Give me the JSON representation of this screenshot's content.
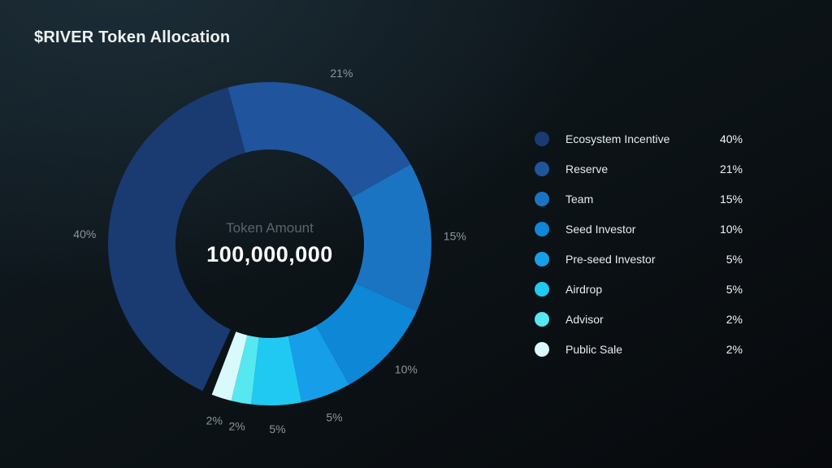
{
  "title": "$RIVER Token Allocation",
  "center": {
    "label": "Token Amount",
    "value": "100,000,000"
  },
  "legend": {
    "position": "right",
    "value_suffix": "%"
  },
  "chart_data": {
    "type": "pie",
    "title": "$RIVER Token Allocation",
    "donut": true,
    "center_label": "Token Amount",
    "center_value": "100,000,000",
    "start_angle_deg": -15,
    "direction": "clockwise",
    "legend_position": "right",
    "slice_label_format": "percent",
    "slices": [
      {
        "label": "Ecosystem Incentive",
        "value": 40,
        "color": "#1a3a72"
      },
      {
        "label": "Reserve",
        "value": 21,
        "color": "#20549d"
      },
      {
        "label": "Team",
        "value": 15,
        "color": "#1b74c2"
      },
      {
        "label": "Seed Investor",
        "value": 10,
        "color": "#0d87d6"
      },
      {
        "label": "Pre-seed Investor",
        "value": 5,
        "color": "#169fe8"
      },
      {
        "label": "Airdrop",
        "value": 5,
        "color": "#1fc9f2"
      },
      {
        "label": "Advisor",
        "value": 2,
        "color": "#55e8f0"
      },
      {
        "label": "Public Sale",
        "value": 2,
        "color": "#d8fafd"
      }
    ]
  }
}
